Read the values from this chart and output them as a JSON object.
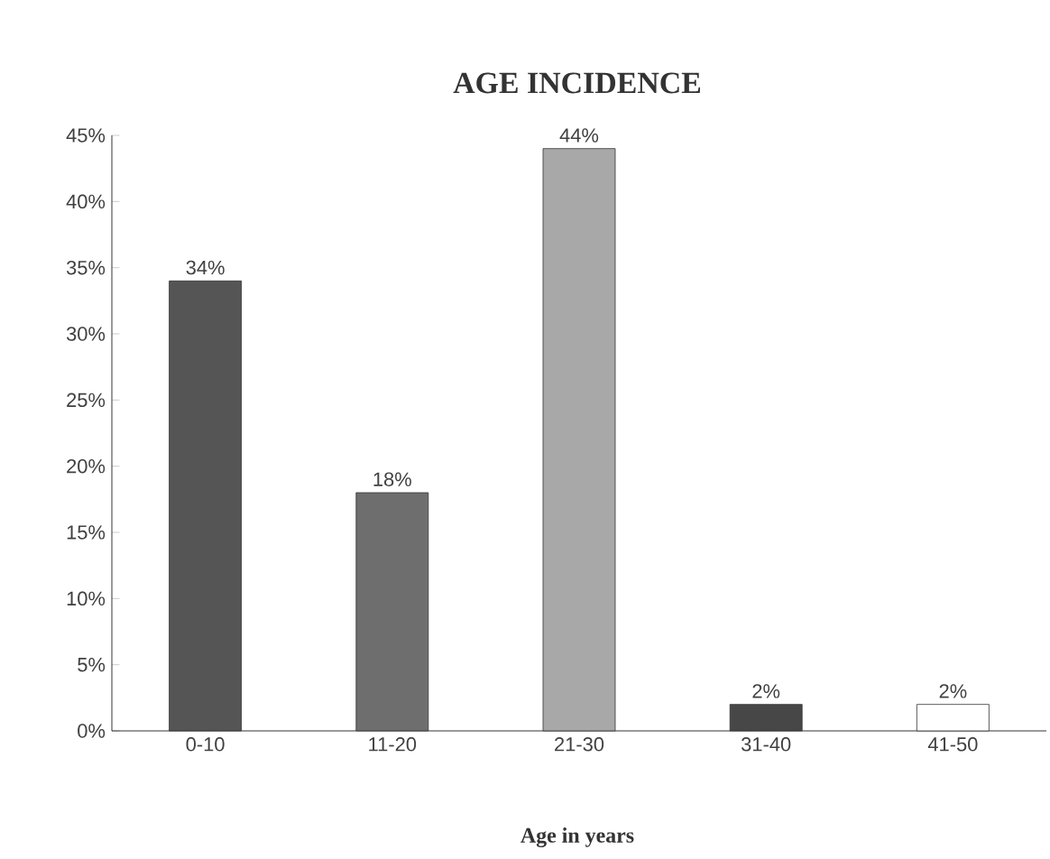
{
  "chart_data": {
    "type": "bar",
    "title": "AGE INCIDENCE",
    "xlabel": "Age in years",
    "categories": [
      "0-10",
      "11-20",
      "21-30",
      "31-40",
      "41-50"
    ],
    "values": [
      34,
      18,
      44,
      2,
      2
    ],
    "value_labels": [
      "34%",
      "18%",
      "44%",
      "2%",
      "2%"
    ],
    "colors": [
      "#555555",
      "#6e6e6e",
      "#a8a8a8",
      "#474747",
      "#ffffff"
    ],
    "ylim": [
      0,
      45
    ],
    "yticks": [
      {
        "value": 0,
        "label": "0%"
      },
      {
        "value": 5,
        "label": "5%"
      },
      {
        "value": 10,
        "label": "10%"
      },
      {
        "value": 15,
        "label": "15%"
      },
      {
        "value": 20,
        "label": "20%"
      },
      {
        "value": 25,
        "label": "25%"
      },
      {
        "value": 30,
        "label": "30%"
      },
      {
        "value": 35,
        "label": "35%"
      },
      {
        "value": 40,
        "label": "40%"
      },
      {
        "value": 45,
        "label": "45%"
      }
    ],
    "grid": false
  }
}
